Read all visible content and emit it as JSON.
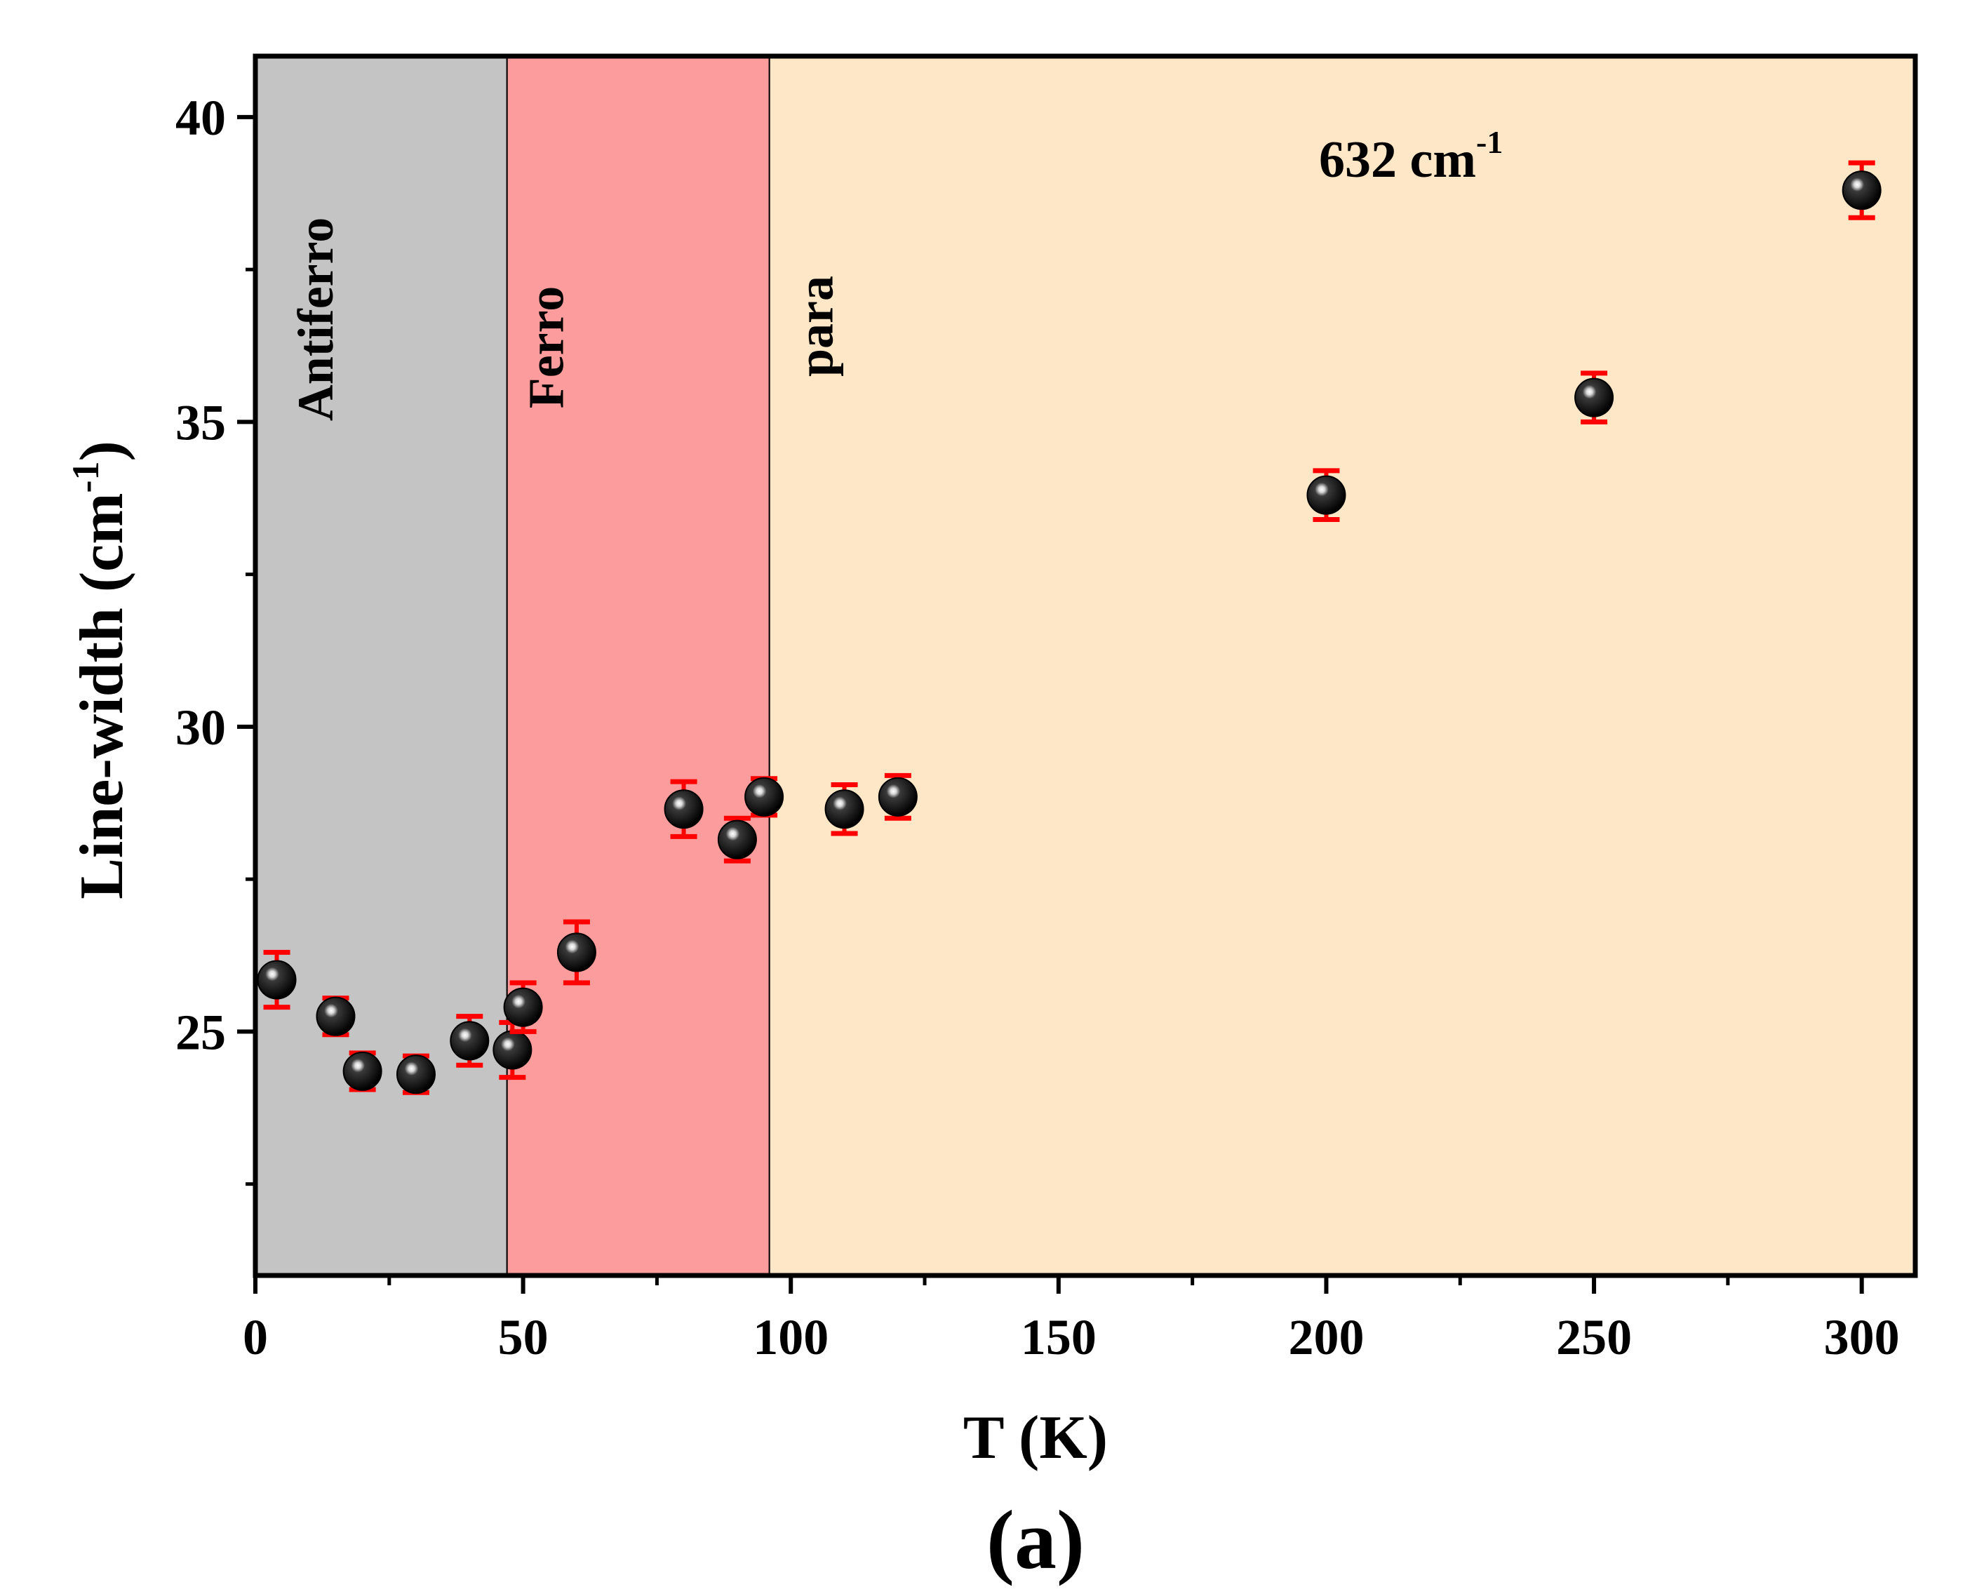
{
  "chart_data": {
    "type": "scatter",
    "title": "",
    "xlabel": "T (K)",
    "ylabel": "Line-width (cm",
    "ylabel_sup": "-1",
    "ylabel_close": ")",
    "xlim": [
      0,
      310
    ],
    "ylim": [
      21,
      41
    ],
    "xticks": [
      0,
      50,
      100,
      150,
      200,
      250,
      300
    ],
    "xticks_minor": [
      25,
      75,
      125,
      175,
      225,
      275
    ],
    "yticks": [
      25,
      30,
      35,
      40
    ],
    "yticks_minor": [
      22.5,
      27.5,
      32.5,
      37.5
    ],
    "regions": [
      {
        "label": "Antiferro",
        "x0": 0,
        "x1": 47,
        "color": "#c4c4c4"
      },
      {
        "label": "Ferro",
        "x0": 47,
        "x1": 96,
        "color": "#fd9c9c"
      },
      {
        "label": "para",
        "x0": 96,
        "x1": 310,
        "color": "#fee7c6"
      }
    ],
    "annotation": {
      "text": "632 cm",
      "sup": "-1"
    },
    "panel_label": "(a)",
    "series": [
      {
        "name": "632 cm-1",
        "marker_color": "#000000",
        "error_color": "#ff0000",
        "points": [
          {
            "x": 4,
            "y": 25.85,
            "err": 0.45
          },
          {
            "x": 15,
            "y": 25.25,
            "err": 0.3
          },
          {
            "x": 20,
            "y": 24.35,
            "err": 0.3
          },
          {
            "x": 30,
            "y": 24.3,
            "err": 0.3
          },
          {
            "x": 40,
            "y": 24.85,
            "err": 0.4
          },
          {
            "x": 48,
            "y": 24.7,
            "err": 0.45
          },
          {
            "x": 50,
            "y": 25.4,
            "err": 0.4
          },
          {
            "x": 60,
            "y": 26.3,
            "err": 0.5
          },
          {
            "x": 80,
            "y": 28.65,
            "err": 0.45
          },
          {
            "x": 90,
            "y": 28.15,
            "err": 0.35
          },
          {
            "x": 95,
            "y": 28.85,
            "err": 0.3
          },
          {
            "x": 110,
            "y": 28.65,
            "err": 0.4
          },
          {
            "x": 120,
            "y": 28.85,
            "err": 0.35
          },
          {
            "x": 200,
            "y": 33.8,
            "err": 0.4
          },
          {
            "x": 250,
            "y": 35.4,
            "err": 0.4
          },
          {
            "x": 300,
            "y": 38.8,
            "err": 0.45
          }
        ]
      }
    ]
  }
}
